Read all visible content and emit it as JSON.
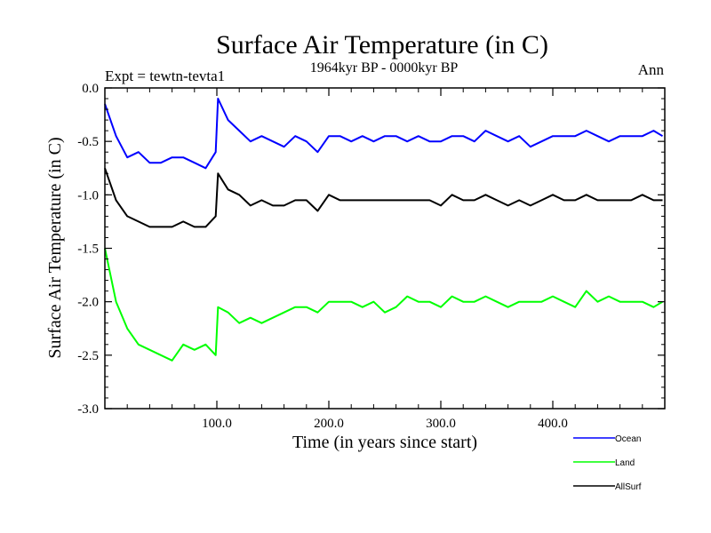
{
  "chart_data": {
    "type": "line",
    "title": "Surface Air Temperature (in C)",
    "subtitle": "1964kyr BP - 0000kyr BP",
    "left_label": "Expt = tewtn-tevta1",
    "right_label": "Ann",
    "xlabel": "Time (in years since start)",
    "ylabel": "Surface Air Temperature (in C)",
    "xlim": [
      0,
      500
    ],
    "ylim": [
      -3.0,
      0.0
    ],
    "x_ticks": [
      100,
      200,
      300,
      400
    ],
    "x_tick_labels": [
      "100.0",
      "200.0",
      "300.0",
      "400.0"
    ],
    "y_ticks": [
      0.0,
      -0.5,
      -1.0,
      -1.5,
      -2.0,
      -2.5,
      -3.0
    ],
    "y_tick_labels": [
      "0.0",
      "-0.5",
      "-1.0",
      "-1.5",
      "-2.0",
      "-2.5",
      "-3.0"
    ],
    "legend_position": "below-right",
    "series": [
      {
        "name": "Ocean",
        "color": "#0000ff",
        "x": [
          0,
          10,
          20,
          30,
          40,
          50,
          60,
          70,
          80,
          90,
          99,
          101,
          110,
          120,
          130,
          140,
          150,
          160,
          170,
          180,
          190,
          200,
          210,
          220,
          230,
          240,
          250,
          260,
          270,
          280,
          290,
          300,
          310,
          320,
          330,
          340,
          350,
          360,
          370,
          380,
          390,
          400,
          410,
          420,
          430,
          440,
          450,
          460,
          470,
          480,
          490,
          498
        ],
        "values": [
          -0.15,
          -0.45,
          -0.65,
          -0.6,
          -0.7,
          -0.7,
          -0.65,
          -0.65,
          -0.7,
          -0.75,
          -0.6,
          -0.1,
          -0.3,
          -0.4,
          -0.5,
          -0.45,
          -0.5,
          -0.55,
          -0.45,
          -0.5,
          -0.6,
          -0.45,
          -0.45,
          -0.5,
          -0.45,
          -0.5,
          -0.45,
          -0.45,
          -0.5,
          -0.45,
          -0.5,
          -0.5,
          -0.45,
          -0.45,
          -0.5,
          -0.4,
          -0.45,
          -0.5,
          -0.45,
          -0.55,
          -0.5,
          -0.45,
          -0.45,
          -0.45,
          -0.4,
          -0.45,
          -0.5,
          -0.45,
          -0.45,
          -0.45,
          -0.4,
          -0.45
        ]
      },
      {
        "name": "Land",
        "color": "#00ff00",
        "x": [
          0,
          10,
          20,
          30,
          40,
          50,
          60,
          70,
          80,
          90,
          99,
          101,
          110,
          120,
          130,
          140,
          150,
          160,
          170,
          180,
          190,
          200,
          210,
          220,
          230,
          240,
          250,
          260,
          270,
          280,
          290,
          300,
          310,
          320,
          330,
          340,
          350,
          360,
          370,
          380,
          390,
          400,
          410,
          420,
          430,
          440,
          450,
          460,
          470,
          480,
          490,
          498
        ],
        "values": [
          -1.5,
          -2.0,
          -2.25,
          -2.4,
          -2.45,
          -2.5,
          -2.55,
          -2.4,
          -2.45,
          -2.4,
          -2.5,
          -2.05,
          -2.1,
          -2.2,
          -2.15,
          -2.2,
          -2.15,
          -2.1,
          -2.05,
          -2.05,
          -2.1,
          -2.0,
          -2.0,
          -2.0,
          -2.05,
          -2.0,
          -2.1,
          -2.05,
          -1.95,
          -2.0,
          -2.0,
          -2.05,
          -1.95,
          -2.0,
          -2.0,
          -1.95,
          -2.0,
          -2.05,
          -2.0,
          -2.0,
          -2.0,
          -1.95,
          -2.0,
          -2.05,
          -1.9,
          -2.0,
          -1.95,
          -2.0,
          -2.0,
          -2.0,
          -2.05,
          -2.0
        ]
      },
      {
        "name": "AllSurf",
        "color": "#000000",
        "x": [
          0,
          10,
          20,
          30,
          40,
          50,
          60,
          70,
          80,
          90,
          99,
          101,
          110,
          120,
          130,
          140,
          150,
          160,
          170,
          180,
          190,
          200,
          210,
          220,
          230,
          240,
          250,
          260,
          270,
          280,
          290,
          300,
          310,
          320,
          330,
          340,
          350,
          360,
          370,
          380,
          390,
          400,
          410,
          420,
          430,
          440,
          450,
          460,
          470,
          480,
          490,
          498
        ],
        "values": [
          -0.75,
          -1.05,
          -1.2,
          -1.25,
          -1.3,
          -1.3,
          -1.3,
          -1.25,
          -1.3,
          -1.3,
          -1.2,
          -0.8,
          -0.95,
          -1.0,
          -1.1,
          -1.05,
          -1.1,
          -1.1,
          -1.05,
          -1.05,
          -1.15,
          -1.0,
          -1.05,
          -1.05,
          -1.05,
          -1.05,
          -1.05,
          -1.05,
          -1.05,
          -1.05,
          -1.05,
          -1.1,
          -1.0,
          -1.05,
          -1.05,
          -1.0,
          -1.05,
          -1.1,
          -1.05,
          -1.1,
          -1.05,
          -1.0,
          -1.05,
          -1.05,
          -1.0,
          -1.05,
          -1.05,
          -1.05,
          -1.05,
          -1.0,
          -1.05,
          -1.05
        ]
      }
    ]
  }
}
